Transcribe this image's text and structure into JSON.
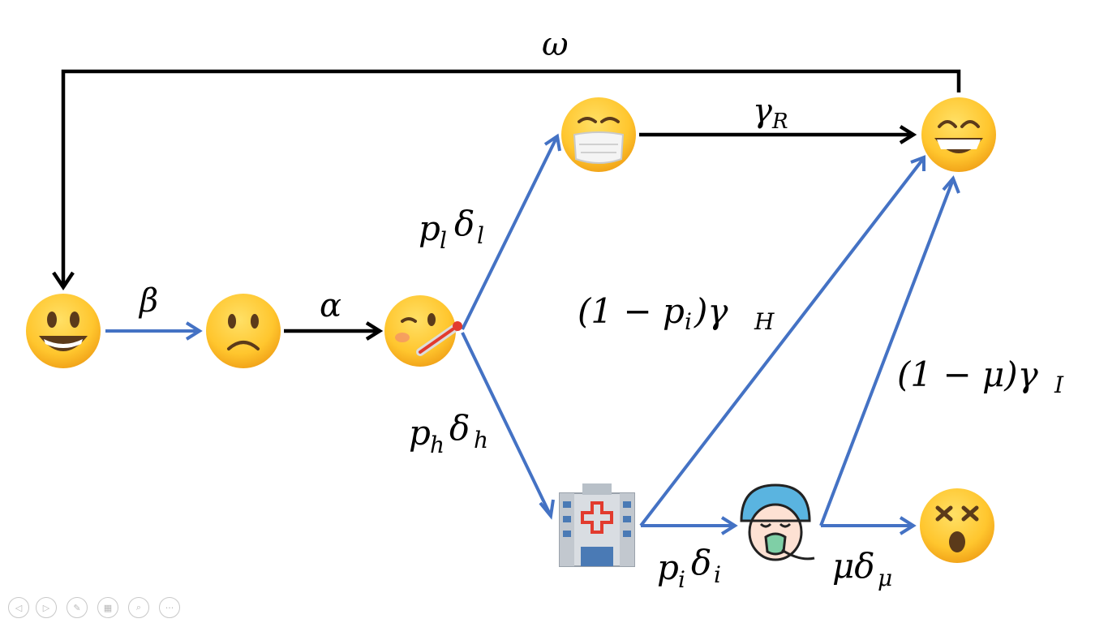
{
  "labels": {
    "omega": "ω",
    "beta": "β",
    "alpha": "α",
    "gammaR": "γ",
    "gammaR_sub": "R",
    "pl": "p",
    "pl_sub": "l",
    "dl": "δ",
    "dl_sub": "l",
    "ph": "p",
    "ph_sub": "h",
    "dh": "δ",
    "dh_sub": "h",
    "recov_h_main": "(1 − p",
    "recov_h_sub1": "i",
    "recov_h_main2": ")γ",
    "recov_h_sub2": "H",
    "recov_i_main": "(1 − μ)γ",
    "recov_i_sub": "I",
    "pi": "p",
    "pi_sub": "i",
    "di": "δ",
    "di_sub": "i",
    "mu": "μδ",
    "mu_sub": "μ"
  },
  "colors": {
    "blue_arrow": "#4472c4",
    "black_arrow": "#000000",
    "emoji_yellow": "#ffcc33"
  },
  "nodes": [
    "susceptible-happy",
    "exposed-frown",
    "infected-thermometer",
    "mild-mask",
    "recovered-grin",
    "hospital",
    "icu-patient",
    "dead-dizzy"
  ],
  "controls": [
    "prev-icon",
    "next-icon",
    "pen-icon",
    "slides-icon",
    "zoom-icon",
    "more-icon"
  ]
}
